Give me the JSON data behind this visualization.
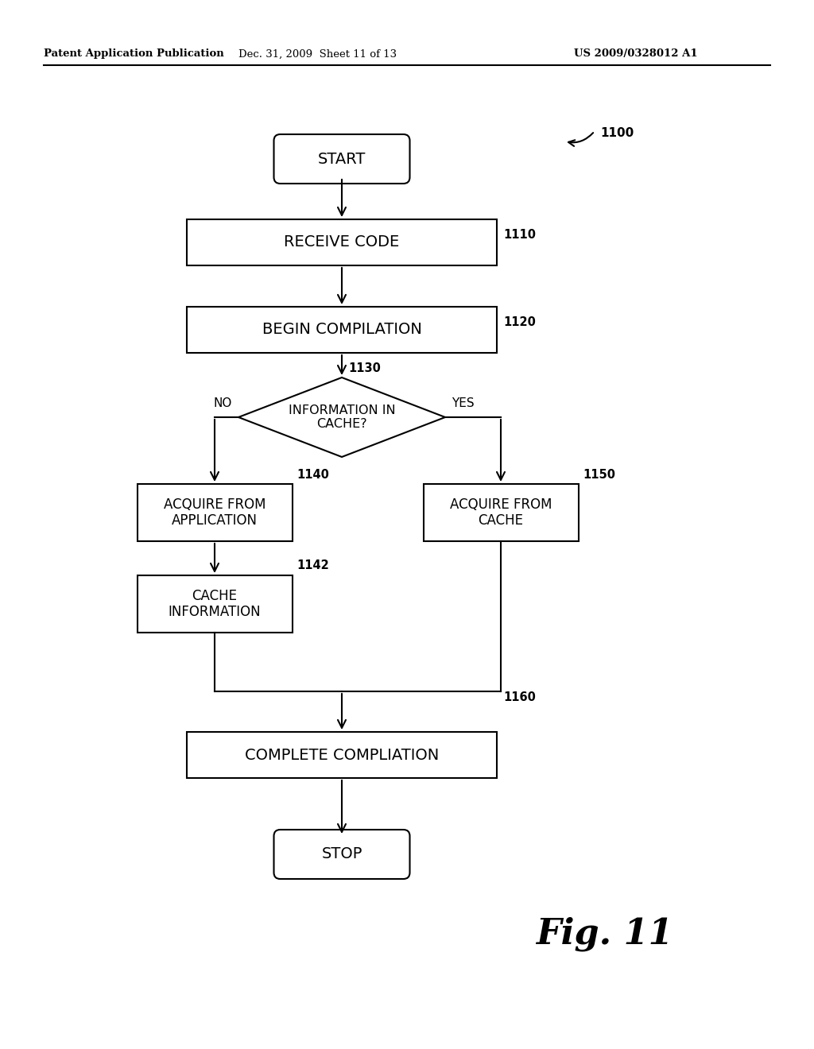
{
  "header_left": "Patent Application Publication",
  "header_middle": "Dec. 31, 2009  Sheet 11 of 13",
  "header_right": "US 2009/0328012 A1",
  "fig_label": "Fig. 11",
  "background_color": "#ffffff",
  "nodes": {
    "start": {
      "label": "START"
    },
    "receive": {
      "label": "RECEIVE CODE",
      "tag": "1110"
    },
    "begin": {
      "label": "BEGIN COMPILATION",
      "tag": "1120"
    },
    "diamond": {
      "label": "INFORMATION IN\nCACHE?",
      "tag": "1130"
    },
    "acq_app": {
      "label": "ACQUIRE FROM\nAPPLICATION",
      "tag": "1140"
    },
    "acq_cache": {
      "label": "ACQUIRE FROM\nCACHE",
      "tag": "1150"
    },
    "cache_info": {
      "label": "CACHE\nINFORMATION",
      "tag": "1142"
    },
    "complete": {
      "label": "COMPLETE COMPLIATION",
      "tag": "1160"
    },
    "stop": {
      "label": "STOP"
    }
  },
  "diagram_tag": "1100"
}
